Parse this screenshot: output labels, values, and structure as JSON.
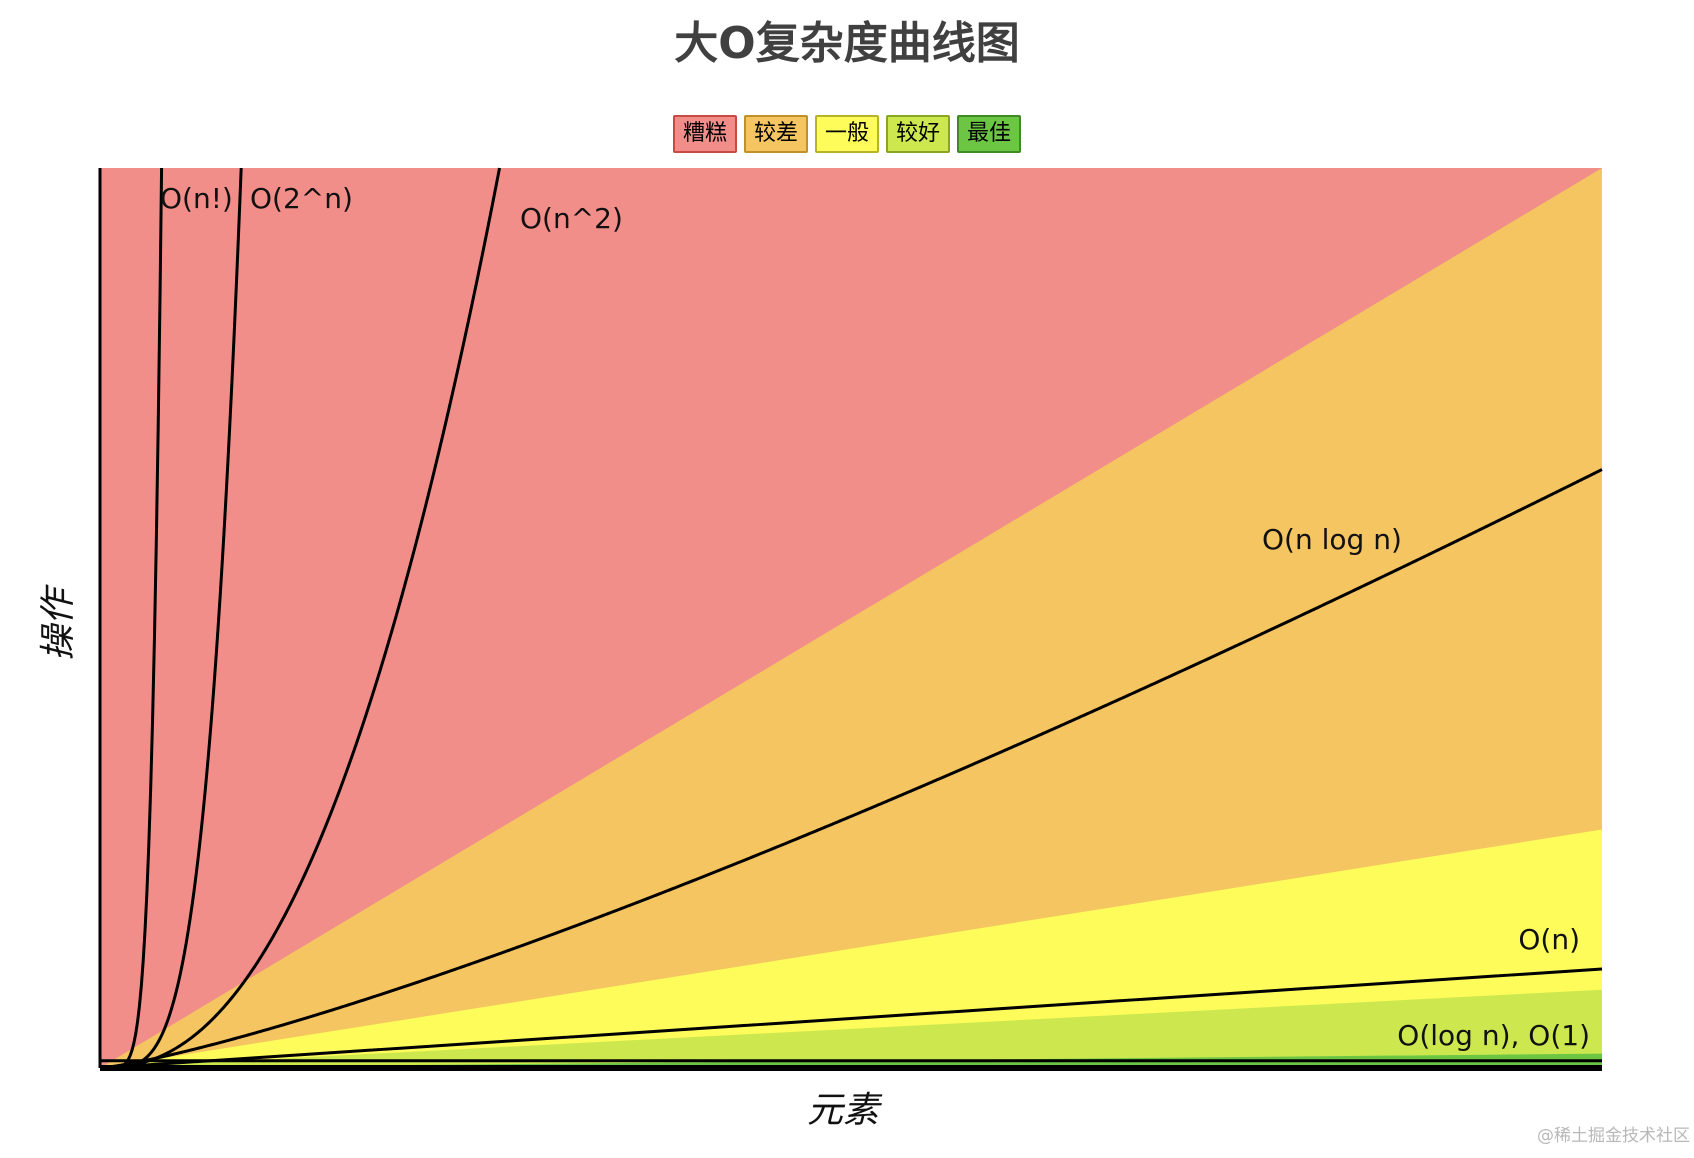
{
  "chart_data": {
    "type": "area",
    "title": "大O复杂度曲线图",
    "xlabel": "元素",
    "ylabel": "操作",
    "grid": false,
    "legend_position": "top-center",
    "legend": [
      {
        "label": "糟糕",
        "color": "#f28e8a",
        "border": "#c94a45"
      },
      {
        "label": "较差",
        "color": "#f4c560",
        "border": "#c0902a"
      },
      {
        "label": "一般",
        "color": "#fdfc5a",
        "border": "#b8b42a"
      },
      {
        "label": "较好",
        "color": "#cde84e",
        "border": "#8aa425"
      },
      {
        "label": "最佳",
        "color": "#6cc644",
        "border": "#3f8a23"
      }
    ],
    "xlim": [
      0,
      100
    ],
    "ylim": [
      0,
      100
    ],
    "zones": [
      {
        "label": "糟糕",
        "color": "#f28e8a",
        "upper_at_xmax": 100
      },
      {
        "label": "较差",
        "color": "#f4c560",
        "upper_at_xmax": 100
      },
      {
        "label": "一般",
        "color": "#fdfc5a",
        "upper_at_xmax": 26.5
      },
      {
        "label": "较好",
        "color": "#cde84e",
        "upper_at_xmax": 8.7
      },
      {
        "label": "最佳",
        "color": "#6cc644",
        "upper_at_xmax": 1.6
      }
    ],
    "series": [
      {
        "name": "O(n!)",
        "label_pos": "top"
      },
      {
        "name": "O(2^n)",
        "label_pos": "top"
      },
      {
        "name": "O(n^2)",
        "label_pos": "top"
      },
      {
        "name": "O(n log n)",
        "label_pos": "line"
      },
      {
        "name": "O(n)",
        "label_pos": "line"
      },
      {
        "name": "O(log n), O(1)",
        "label_pos": "line"
      }
    ]
  },
  "watermark": "@稀土掘金技术社区"
}
